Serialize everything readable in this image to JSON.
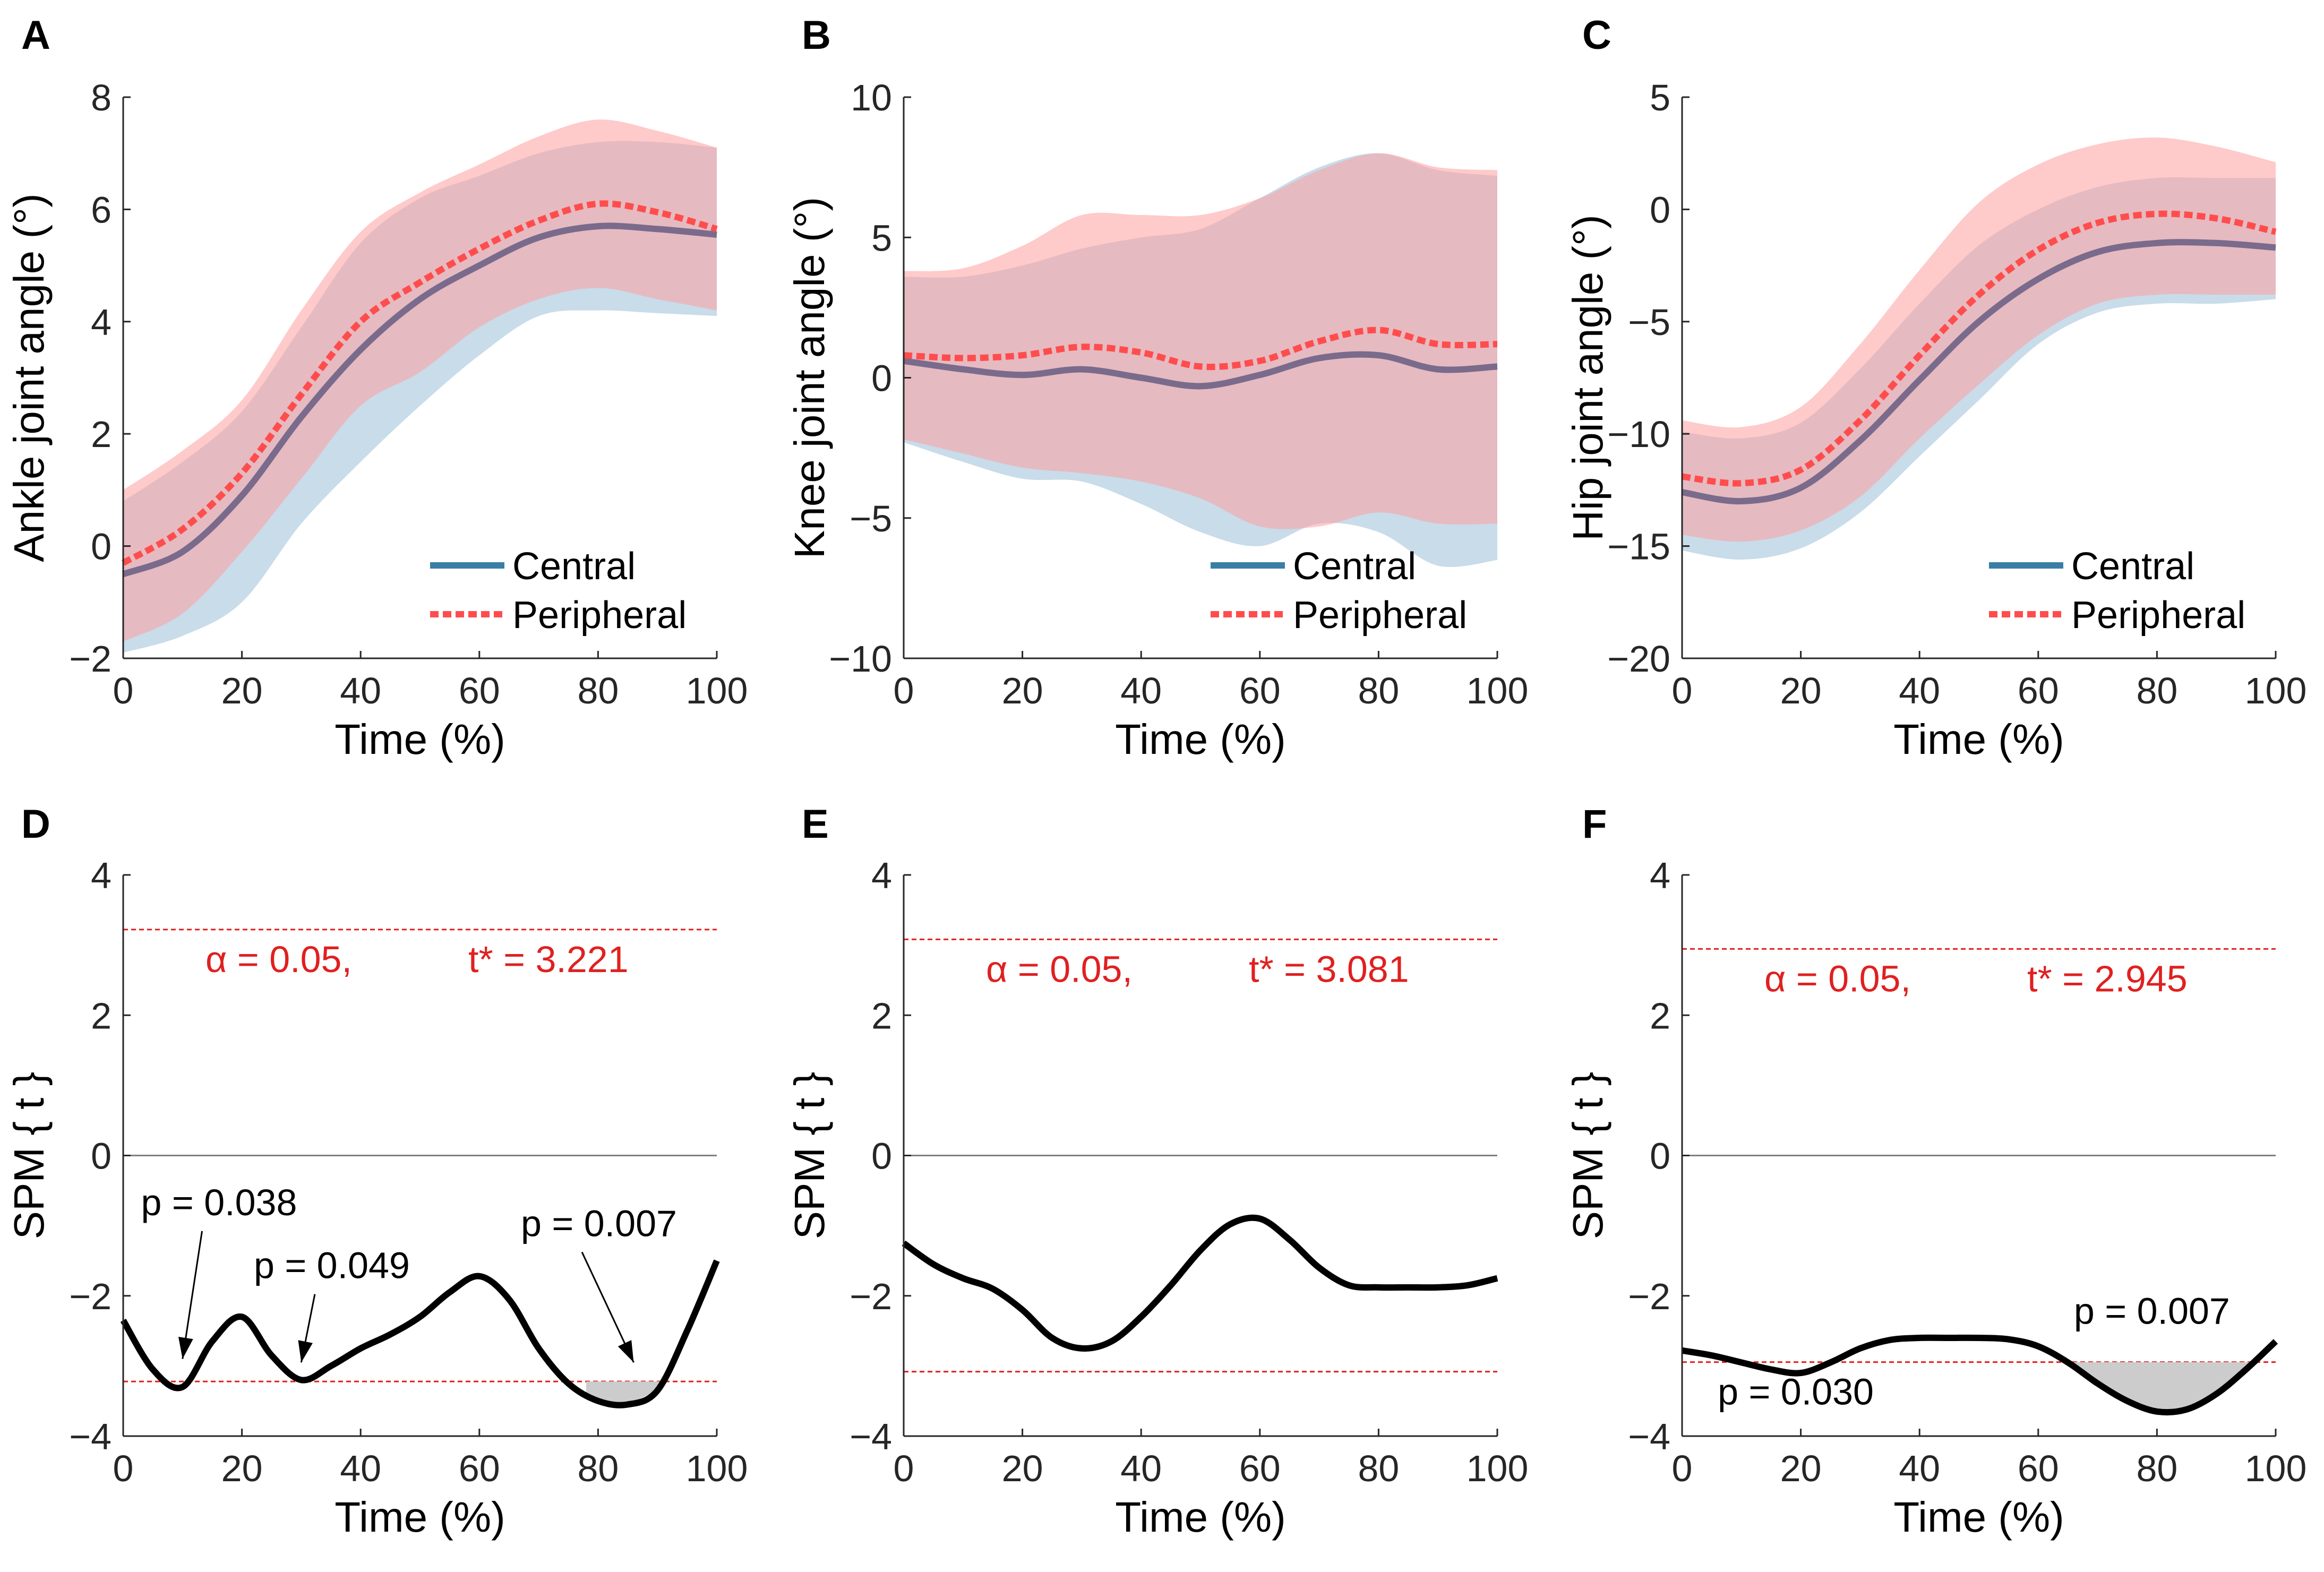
{
  "colors": {
    "central": "#3a7ea6",
    "peripheral": "#ff4d4d",
    "central_band": "#9bbfd8",
    "peripheral_band": "#ff9e9e",
    "threshold": "#e02020",
    "spm_line": "#000000",
    "shade": "#cccccc"
  },
  "chart_data": [
    {
      "panel": "A",
      "type": "area",
      "ylabel": "Ankle joint angle (°)",
      "xlabel": "Time (%)",
      "xlim": [
        0,
        100
      ],
      "ylim": [
        -2,
        8
      ],
      "xticks": [
        0,
        20,
        40,
        60,
        80,
        100
      ],
      "yticks": [
        -2,
        0,
        2,
        4,
        6,
        8
      ],
      "ytick_labels": [
        "−2",
        "0",
        "2",
        "4",
        "6",
        "8"
      ],
      "legend": [
        "Central",
        "Peripheral"
      ],
      "legend_position": "bottom-right",
      "x": [
        0,
        10,
        20,
        30,
        40,
        50,
        60,
        70,
        80,
        90,
        100
      ],
      "series": [
        {
          "name": "Central",
          "mean": [
            -0.5,
            -0.1,
            0.9,
            2.3,
            3.5,
            4.4,
            5.0,
            5.5,
            5.7,
            5.65,
            5.55
          ],
          "upper": [
            0.8,
            1.5,
            2.4,
            3.9,
            5.4,
            6.2,
            6.6,
            7.0,
            7.2,
            7.2,
            7.1
          ],
          "lower": [
            -1.9,
            -1.6,
            -1.0,
            0.4,
            1.5,
            2.5,
            3.4,
            4.1,
            4.2,
            4.15,
            4.1
          ]
        },
        {
          "name": "Peripheral",
          "mean": [
            -0.3,
            0.3,
            1.3,
            2.7,
            4.0,
            4.7,
            5.3,
            5.8,
            6.1,
            5.95,
            5.65
          ],
          "upper": [
            1.0,
            1.7,
            2.6,
            4.2,
            5.6,
            6.3,
            6.8,
            7.3,
            7.6,
            7.4,
            7.1
          ],
          "lower": [
            -1.7,
            -1.2,
            -0.1,
            1.2,
            2.5,
            3.1,
            3.9,
            4.4,
            4.6,
            4.4,
            4.2
          ]
        }
      ]
    },
    {
      "panel": "B",
      "type": "area",
      "ylabel": "Knee joint angle (°)",
      "xlabel": "Time (%)",
      "xlim": [
        0,
        100
      ],
      "ylim": [
        -10,
        10
      ],
      "xticks": [
        0,
        20,
        40,
        60,
        80,
        100
      ],
      "yticks": [
        -10,
        -5,
        0,
        5,
        10
      ],
      "ytick_labels": [
        "−10",
        "−5",
        "0",
        "5",
        "10"
      ],
      "legend": [
        "Central",
        "Peripheral"
      ],
      "legend_position": "bottom-right",
      "x": [
        0,
        10,
        20,
        30,
        40,
        50,
        60,
        70,
        80,
        90,
        100
      ],
      "series": [
        {
          "name": "Central",
          "mean": [
            0.6,
            0.3,
            0.1,
            0.3,
            0.0,
            -0.3,
            0.1,
            0.7,
            0.8,
            0.3,
            0.4
          ],
          "upper": [
            3.6,
            3.6,
            4.0,
            4.6,
            5.0,
            5.3,
            6.4,
            7.5,
            8.0,
            7.4,
            7.2
          ],
          "lower": [
            -2.3,
            -3.0,
            -3.6,
            -3.7,
            -4.5,
            -5.5,
            -6.0,
            -5.2,
            -5.5,
            -6.7,
            -6.5
          ]
        },
        {
          "name": "Peripheral",
          "mean": [
            0.8,
            0.7,
            0.8,
            1.1,
            0.9,
            0.4,
            0.6,
            1.3,
            1.7,
            1.2,
            1.2
          ],
          "upper": [
            3.8,
            3.9,
            4.7,
            5.8,
            5.8,
            5.8,
            6.4,
            7.4,
            8.0,
            7.5,
            7.4
          ],
          "lower": [
            -2.2,
            -2.7,
            -3.2,
            -3.4,
            -3.7,
            -4.3,
            -5.3,
            -5.3,
            -4.8,
            -5.2,
            -5.2
          ]
        }
      ]
    },
    {
      "panel": "C",
      "type": "area",
      "ylabel": "Hip joint angle (°)",
      "xlabel": "Time (%)",
      "xlim": [
        0,
        100
      ],
      "ylim": [
        -20,
        5
      ],
      "xticks": [
        0,
        20,
        40,
        60,
        80,
        100
      ],
      "yticks": [
        -20,
        -15,
        -10,
        -5,
        0,
        5
      ],
      "ytick_labels": [
        "−20",
        "−15",
        "−10",
        "−5",
        "0",
        "5"
      ],
      "legend": [
        "Central",
        "Peripheral"
      ],
      "legend_position": "bottom-right",
      "x": [
        0,
        10,
        20,
        30,
        40,
        50,
        60,
        70,
        80,
        90,
        100
      ],
      "series": [
        {
          "name": "Central",
          "mean": [
            -12.6,
            -13.0,
            -12.4,
            -10.3,
            -7.6,
            -5.0,
            -3.1,
            -1.9,
            -1.5,
            -1.5,
            -1.7
          ],
          "upper": [
            -9.9,
            -10.2,
            -9.5,
            -7.1,
            -4.2,
            -1.6,
            0.0,
            1.0,
            1.4,
            1.4,
            1.4
          ],
          "lower": [
            -15.2,
            -15.6,
            -15.1,
            -13.5,
            -11.0,
            -8.5,
            -6.0,
            -4.6,
            -4.2,
            -4.2,
            -4.0
          ]
        },
        {
          "name": "Peripheral",
          "mean": [
            -11.9,
            -12.2,
            -11.6,
            -9.4,
            -6.5,
            -3.8,
            -1.8,
            -0.6,
            -0.2,
            -0.4,
            -1.0
          ],
          "upper": [
            -9.4,
            -9.7,
            -8.8,
            -6.0,
            -2.7,
            0.3,
            2.0,
            2.9,
            3.2,
            2.8,
            2.1
          ],
          "lower": [
            -14.5,
            -14.8,
            -14.3,
            -12.8,
            -10.2,
            -7.8,
            -5.6,
            -4.2,
            -3.8,
            -3.8,
            -3.8
          ]
        }
      ]
    },
    {
      "panel": "D",
      "type": "line",
      "ylabel": "SPM { t }",
      "xlabel": "Time (%)",
      "xlim": [
        0,
        100
      ],
      "ylim": [
        -4,
        4
      ],
      "xticks": [
        0,
        20,
        40,
        60,
        80,
        100
      ],
      "yticks": [
        -4,
        -2,
        0,
        2,
        4
      ],
      "ytick_labels": [
        "−4",
        "−2",
        "0",
        "2",
        "4"
      ],
      "alpha_text": "α  = 0.05,",
      "tstar_text": "t* = 3.221",
      "threshold": 3.221,
      "x": [
        0,
        5,
        10,
        15,
        20,
        25,
        30,
        35,
        40,
        45,
        50,
        55,
        60,
        65,
        70,
        75,
        80,
        85,
        90,
        95,
        100
      ],
      "t": [
        -2.35,
        -3.05,
        -3.3,
        -2.65,
        -2.3,
        -2.85,
        -3.2,
        -3.0,
        -2.75,
        -2.55,
        -2.3,
        -1.95,
        -1.72,
        -2.05,
        -2.75,
        -3.25,
        -3.5,
        -3.55,
        -3.35,
        -2.5,
        -1.5
      ],
      "shaded_range": [
        78,
        91
      ],
      "annotations": [
        {
          "text": "p = 0.038",
          "x": 10,
          "y": -2.9,
          "text_x": 3,
          "text_y": -0.85
        },
        {
          "text": "p = 0.049",
          "x": 30,
          "y": -2.95,
          "text_x": 22,
          "text_y": -1.75
        },
        {
          "text": "p = 0.007",
          "x": 86,
          "y": -2.95,
          "text_x": 67,
          "text_y": -1.15
        }
      ]
    },
    {
      "panel": "E",
      "type": "line",
      "ylabel": "SPM { t }",
      "xlabel": "Time (%)",
      "xlim": [
        0,
        100
      ],
      "ylim": [
        -4,
        4
      ],
      "xticks": [
        0,
        20,
        40,
        60,
        80,
        100
      ],
      "yticks": [
        -4,
        -2,
        0,
        2,
        4
      ],
      "ytick_labels": [
        "−4",
        "−2",
        "0",
        "2",
        "4"
      ],
      "alpha_text": "α  = 0.05,",
      "tstar_text": "t* = 3.081",
      "threshold": 3.081,
      "x": [
        0,
        5,
        10,
        15,
        20,
        25,
        30,
        35,
        40,
        45,
        50,
        55,
        60,
        65,
        70,
        75,
        80,
        85,
        90,
        95,
        100
      ],
      "t": [
        -1.25,
        -1.55,
        -1.75,
        -1.9,
        -2.2,
        -2.6,
        -2.75,
        -2.65,
        -2.3,
        -1.85,
        -1.35,
        -0.98,
        -0.9,
        -1.2,
        -1.6,
        -1.85,
        -1.88,
        -1.88,
        -1.88,
        -1.85,
        -1.75
      ],
      "shaded_range": null,
      "annotations": []
    },
    {
      "panel": "F",
      "type": "line",
      "ylabel": "SPM { t }",
      "xlabel": "Time (%)",
      "xlim": [
        0,
        100
      ],
      "ylim": [
        -4,
        4
      ],
      "xticks": [
        0,
        20,
        40,
        60,
        80,
        100
      ],
      "yticks": [
        -4,
        -2,
        0,
        2,
        4
      ],
      "ytick_labels": [
        "−4",
        "−2",
        "0",
        "2",
        "4"
      ],
      "alpha_text": "α  = 0.05,",
      "tstar_text": "t* = 2.945",
      "threshold": 2.945,
      "x": [
        0,
        5,
        10,
        15,
        20,
        25,
        30,
        35,
        40,
        45,
        50,
        55,
        60,
        65,
        70,
        75,
        80,
        85,
        90,
        95,
        100
      ],
      "t": [
        -2.78,
        -2.85,
        -2.95,
        -3.05,
        -3.1,
        -2.95,
        -2.75,
        -2.63,
        -2.6,
        -2.6,
        -2.6,
        -2.62,
        -2.72,
        -2.95,
        -3.25,
        -3.5,
        -3.65,
        -3.62,
        -3.4,
        -3.05,
        -2.65
      ],
      "shaded_range": [
        66,
        100
      ],
      "annotations": [
        {
          "text": "p = 0.030",
          "x": null,
          "y": null,
          "text_x": 6,
          "text_y": -3.55
        },
        {
          "text": "p = 0.007",
          "x": null,
          "y": null,
          "text_x": 66,
          "text_y": -2.4
        }
      ]
    }
  ]
}
